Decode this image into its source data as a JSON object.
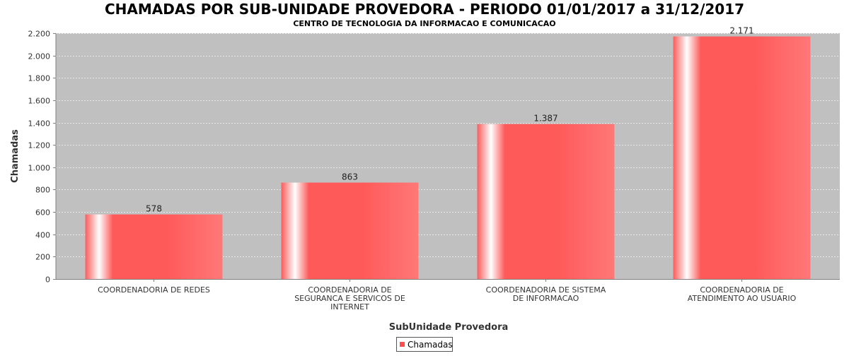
{
  "chart_data": {
    "type": "bar",
    "title": "CHAMADAS POR SUB-UNIDADE PROVEDORA - PERIODO 01/01/2017 a 31/12/2017",
    "subtitle": "CENTRO DE TECNOLOGIA DA INFORMACAO E COMUNICACAO",
    "xlabel": "SubUnidade Provedora",
    "ylabel": "Chamadas",
    "ylim": [
      0,
      2200
    ],
    "yticks": [
      {
        "value": 0,
        "label": "0"
      },
      {
        "value": 200,
        "label": "200"
      },
      {
        "value": 400,
        "label": "400"
      },
      {
        "value": 600,
        "label": "600"
      },
      {
        "value": 800,
        "label": "800"
      },
      {
        "value": 1000,
        "label": "1.000"
      },
      {
        "value": 1200,
        "label": "1.200"
      },
      {
        "value": 1400,
        "label": "1.400"
      },
      {
        "value": 1600,
        "label": "1.600"
      },
      {
        "value": 1800,
        "label": "1.800"
      },
      {
        "value": 2000,
        "label": "2.000"
      },
      {
        "value": 2200,
        "label": "2.200"
      }
    ],
    "categories": [
      [
        "COORDENADORIA DE REDES"
      ],
      [
        "COORDENADORIA DE",
        "SEGURANCA E SERVICOS DE",
        "INTERNET"
      ],
      [
        "COORDENADORIA DE SISTEMA",
        "DE INFORMACAO"
      ],
      [
        "COORDENADORIA DE",
        "ATENDIMENTO AO USUARIO"
      ]
    ],
    "series": [
      {
        "name": "Chamadas",
        "values": [
          578,
          863,
          1387,
          2171
        ],
        "value_labels": [
          "578",
          "863",
          "1.387",
          "2.171"
        ]
      }
    ],
    "grid": true,
    "legend_position": "bottom-center",
    "colors": {
      "bar": "#ff5a5a",
      "bar_light": "#ff7575",
      "plot_bg": "#c0c0c0",
      "grid": "#e6e6e6",
      "legend_swatch": "#ff4d4d"
    }
  }
}
